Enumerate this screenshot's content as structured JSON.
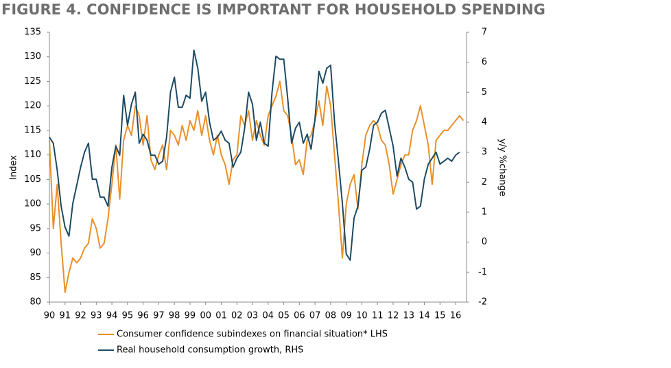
{
  "chart_data": {
    "type": "line",
    "title": "FIGURE 4. CONFIDENCE IS IMPORTANT FOR HOUSEHOLD SPENDING",
    "y_label": "Index",
    "y2_label": "y/y %change",
    "x": [
      1990,
      1990.25,
      1990.5,
      1990.75,
      1991,
      1991.25,
      1991.5,
      1991.75,
      1992,
      1992.25,
      1992.5,
      1992.75,
      1993,
      1993.25,
      1993.5,
      1993.75,
      1994,
      1994.25,
      1994.5,
      1994.75,
      1995,
      1995.25,
      1995.5,
      1995.75,
      1996,
      1996.25,
      1996.5,
      1996.75,
      1997,
      1997.25,
      1997.5,
      1997.75,
      1998,
      1998.25,
      1998.5,
      1998.75,
      1999,
      1999.25,
      1999.5,
      1999.75,
      2000,
      2000.25,
      2000.5,
      2000.75,
      2001,
      2001.25,
      2001.5,
      2001.75,
      2002,
      2002.25,
      2002.5,
      2002.75,
      2003,
      2003.25,
      2003.5,
      2003.75,
      2004,
      2004.25,
      2004.5,
      2004.75,
      2005,
      2005.25,
      2005.5,
      2005.75,
      2006,
      2006.25,
      2006.5,
      2006.75,
      2007,
      2007.25,
      2007.5,
      2007.75,
      2008,
      2008.25,
      2008.5,
      2008.75,
      2009,
      2009.25,
      2009.5,
      2009.75,
      2010,
      2010.25,
      2010.5,
      2010.75,
      2011,
      2011.25,
      2011.5,
      2011.75,
      2012,
      2012.25,
      2012.5,
      2012.75,
      2013,
      2013.25,
      2013.5,
      2013.75,
      2014,
      2014.25,
      2014.5,
      2014.75,
      2015,
      2015.25,
      2015.5,
      2015.75,
      2016,
      2016.25,
      2016.5
    ],
    "series": [
      {
        "name": "Consumer confidence subindexes on financial situation* LHS",
        "color": "#e8902a",
        "values": [
          113,
          95,
          104,
          92,
          82,
          86,
          89,
          88,
          89,
          91,
          92,
          97,
          95,
          91,
          92,
          97,
          104,
          112,
          101,
          113,
          116,
          114,
          120,
          118,
          112,
          118,
          109,
          107,
          110,
          112,
          107,
          115,
          114,
          112,
          116,
          113,
          117,
          115,
          119,
          114,
          118,
          113,
          110,
          114,
          110,
          108,
          104,
          109,
          110,
          118,
          116,
          119,
          113,
          117,
          114,
          112,
          118,
          120,
          122,
          125,
          119,
          118,
          114,
          108,
          109,
          106,
          113,
          114,
          117,
          121,
          116,
          124,
          120,
          110,
          100,
          89,
          100,
          104,
          106,
          99,
          108,
          114,
          116,
          117,
          116,
          113,
          112,
          108,
          102,
          105,
          108,
          110,
          110,
          115,
          117,
          120,
          116,
          112,
          104,
          113,
          114,
          115,
          115,
          116,
          117,
          118,
          117
        ]
      },
      {
        "name": "Real household consumption growth, RHS",
        "color": "#1c4a63",
        "axis": "y2",
        "values": [
          3.5,
          3.3,
          2.4,
          1.2,
          0.5,
          0.2,
          1.3,
          1.9,
          2.5,
          3.0,
          3.3,
          2.1,
          2.1,
          1.5,
          1.5,
          1.2,
          2.5,
          3.2,
          2.9,
          4.9,
          3.9,
          4.6,
          5.0,
          3.3,
          3.6,
          3.4,
          2.9,
          2.9,
          2.6,
          2.7,
          3.5,
          5.0,
          5.5,
          4.5,
          4.5,
          4.9,
          4.8,
          6.4,
          5.8,
          4.7,
          5.0,
          4.0,
          3.4,
          3.5,
          3.7,
          3.4,
          3.3,
          2.5,
          2.8,
          3.0,
          3.8,
          5.0,
          4.6,
          3.4,
          4.0,
          3.3,
          3.2,
          5.0,
          6.2,
          6.1,
          6.1,
          4.8,
          3.3,
          3.8,
          4.0,
          3.3,
          3.6,
          3.1,
          4.1,
          5.7,
          5.3,
          5.8,
          5.9,
          4.0,
          2.7,
          1.3,
          -0.4,
          -0.6,
          0.8,
          1.2,
          2.4,
          2.5,
          3.1,
          3.9,
          4.0,
          4.3,
          4.4,
          3.8,
          3.2,
          2.2,
          2.8,
          2.5,
          2.1,
          2.0,
          1.1,
          1.2,
          2.1,
          2.6,
          2.8,
          3.0,
          2.6,
          2.7,
          2.8,
          2.7,
          2.9,
          3.0,
          null
        ]
      }
    ],
    "xlim": [
      1990,
      2016.7
    ],
    "xticks": [
      {
        "value": 1990,
        "label": "90"
      },
      {
        "value": 1991,
        "label": "91"
      },
      {
        "value": 1992,
        "label": "92"
      },
      {
        "value": 1993,
        "label": "93"
      },
      {
        "value": 1994,
        "label": "94"
      },
      {
        "value": 1995,
        "label": "95"
      },
      {
        "value": 1996,
        "label": "96"
      },
      {
        "value": 1997,
        "label": "97"
      },
      {
        "value": 1998,
        "label": "98"
      },
      {
        "value": 1999,
        "label": "99"
      },
      {
        "value": 2000,
        "label": "00"
      },
      {
        "value": 2001,
        "label": "01"
      },
      {
        "value": 2002,
        "label": "02"
      },
      {
        "value": 2003,
        "label": "03"
      },
      {
        "value": 2004,
        "label": "04"
      },
      {
        "value": 2005,
        "label": "05"
      },
      {
        "value": 2006,
        "label": "06"
      },
      {
        "value": 2007,
        "label": "07"
      },
      {
        "value": 2008,
        "label": "08"
      },
      {
        "value": 2009,
        "label": "09"
      },
      {
        "value": 2010,
        "label": "10"
      },
      {
        "value": 2011,
        "label": "11"
      },
      {
        "value": 2012,
        "label": "12"
      },
      {
        "value": 2013,
        "label": "13"
      },
      {
        "value": 2014,
        "label": "14"
      },
      {
        "value": 2015,
        "label": "15"
      },
      {
        "value": 2016,
        "label": "16"
      }
    ],
    "ylim": [
      80,
      135
    ],
    "yticks": [
      80,
      85,
      90,
      95,
      100,
      105,
      110,
      115,
      120,
      125,
      130,
      135
    ],
    "y2lim": [
      -2,
      7
    ],
    "y2ticks": [
      -2,
      -1,
      0,
      1,
      2,
      3,
      4,
      5,
      6,
      7
    ],
    "grid": false
  }
}
